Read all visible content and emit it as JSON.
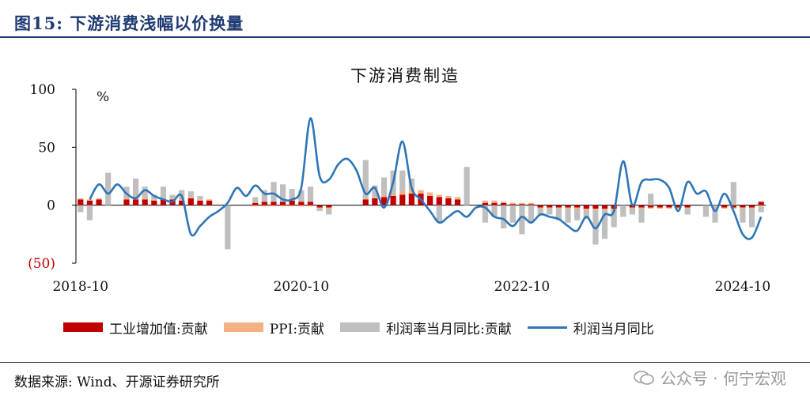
{
  "header": {
    "figure_title": "图15:  下游消费浅幅以价换量"
  },
  "footer": {
    "source": "数据来源:  Wind、开源证券研究所",
    "watermark": "公众号 · 何宁宏观"
  },
  "chart_data": {
    "type": "bar+line",
    "title": "下游消费制造",
    "ylabel": "%",
    "ylim": [
      -50,
      100
    ],
    "y_ticks": [
      100,
      50,
      0,
      -50
    ],
    "y_tick_labels": [
      "100",
      "50",
      "0",
      "(50)"
    ],
    "x_tick_labels": [
      "2018-10",
      "2020-10",
      "2022-10",
      "2024-10"
    ],
    "colors": {
      "industrial": "#c00000",
      "ppi": "#f4b183",
      "profit_margin": "#bfbfbf",
      "profit_yoy": "#2e75b6",
      "negative_tick": "#c00000"
    },
    "legend": [
      "工业增加值:贡献",
      "PPI:贡献",
      "利润率当月同比:贡献",
      "利润当月同比"
    ],
    "x": [
      "2018-10",
      "2018-11",
      "2018-12",
      "2019-01",
      "2019-02",
      "2019-03",
      "2019-04",
      "2019-05",
      "2019-06",
      "2019-07",
      "2019-08",
      "2019-09",
      "2019-10",
      "2019-11",
      "2019-12",
      "2020-01",
      "2020-02",
      "2020-03",
      "2020-04",
      "2020-05",
      "2020-06",
      "2020-07",
      "2020-08",
      "2020-09",
      "2020-10",
      "2020-11",
      "2020-12",
      "2021-01",
      "2021-02",
      "2021-03",
      "2021-04",
      "2021-05",
      "2021-06",
      "2021-07",
      "2021-08",
      "2021-09",
      "2021-10",
      "2021-11",
      "2021-12",
      "2022-01",
      "2022-02",
      "2022-03",
      "2022-04",
      "2022-05",
      "2022-06",
      "2022-07",
      "2022-08",
      "2022-09",
      "2022-10",
      "2022-11",
      "2022-12",
      "2023-01",
      "2023-02",
      "2023-03",
      "2023-04",
      "2023-05",
      "2023-06",
      "2023-07",
      "2023-08",
      "2023-09",
      "2023-10",
      "2023-11",
      "2023-12",
      "2024-01",
      "2024-02",
      "2024-03",
      "2024-04",
      "2024-05",
      "2024-06",
      "2024-07",
      "2024-08",
      "2024-09",
      "2024-10",
      "2024-11",
      "2024-12"
    ],
    "series": [
      {
        "name": "工业增加值:贡献",
        "type": "bar",
        "values": [
          5,
          4,
          5,
          null,
          null,
          5,
          5,
          5,
          4,
          5,
          5,
          4,
          6,
          4,
          4,
          null,
          null,
          null,
          null,
          2,
          3,
          3,
          3,
          4,
          3,
          3,
          -2,
          -2,
          null,
          null,
          null,
          5,
          6,
          7,
          8,
          9,
          10,
          10,
          8,
          7,
          6,
          5,
          null,
          null,
          2,
          2,
          2,
          1,
          1,
          1,
          -2,
          -2,
          -2,
          -2,
          -2,
          -3,
          -3,
          -3,
          -3,
          null,
          -2,
          -2,
          -2,
          -2,
          -2,
          -2,
          -2,
          null,
          null,
          null,
          -2,
          -2,
          -2,
          -2,
          3
        ]
      },
      {
        "name": "PPI:贡献",
        "type": "bar",
        "values": [
          1,
          1,
          1,
          null,
          null,
          1,
          1,
          1,
          1,
          1,
          1,
          1,
          1,
          1,
          1,
          null,
          null,
          null,
          null,
          -1,
          -1,
          -1,
          -1,
          -1,
          -1,
          -1,
          -1,
          -1,
          null,
          null,
          null,
          1,
          1,
          2,
          2,
          3,
          3,
          3,
          3,
          2,
          2,
          2,
          null,
          null,
          2,
          2,
          1,
          1,
          1,
          1,
          -1,
          -1,
          -1,
          -1,
          -1,
          -1,
          -1,
          -1,
          -1,
          null,
          -1,
          -1,
          -1,
          -1,
          -1,
          -1,
          -1,
          null,
          null,
          null,
          -1,
          -1,
          -1,
          -1,
          -1
        ]
      },
      {
        "name": "利润率当月同比:贡献",
        "type": "bar",
        "values": [
          -6,
          -13,
          null,
          28,
          null,
          10,
          17,
          10,
          4,
          10,
          3,
          8,
          5,
          3,
          null,
          null,
          -38,
          null,
          null,
          5,
          10,
          17,
          15,
          10,
          10,
          13,
          -2,
          -5,
          null,
          null,
          null,
          33,
          10,
          15,
          20,
          18,
          10,
          null,
          null,
          -15,
          null,
          null,
          33,
          null,
          -15,
          -10,
          -20,
          -15,
          -25,
          -15,
          -5,
          -5,
          -10,
          -12,
          -10,
          -8,
          -30,
          -25,
          -15,
          -10,
          -5,
          -12,
          10,
          null,
          null,
          null,
          -5,
          null,
          -10,
          -15,
          null,
          20,
          -12,
          -16,
          -5
        ]
      },
      {
        "name": "利润当月同比",
        "type": "line",
        "values": [
          null,
          5,
          18,
          10,
          18,
          10,
          6,
          13,
          8,
          5,
          3,
          8,
          -25,
          -18,
          -10,
          -5,
          2,
          15,
          8,
          17,
          10,
          10,
          5,
          5,
          15,
          75,
          25,
          22,
          35,
          40,
          30,
          10,
          15,
          -2,
          20,
          55,
          15,
          5,
          -5,
          -15,
          -10,
          -5,
          -10,
          -2,
          -2,
          -10,
          -12,
          -18,
          -10,
          -15,
          -8,
          -10,
          -12,
          -18,
          -22,
          -10,
          -20,
          -8,
          -5,
          38,
          0,
          20,
          22,
          22,
          15,
          -5,
          20,
          10,
          12,
          -5,
          10,
          -5,
          -25,
          -28,
          -10
        ]
      }
    ]
  }
}
